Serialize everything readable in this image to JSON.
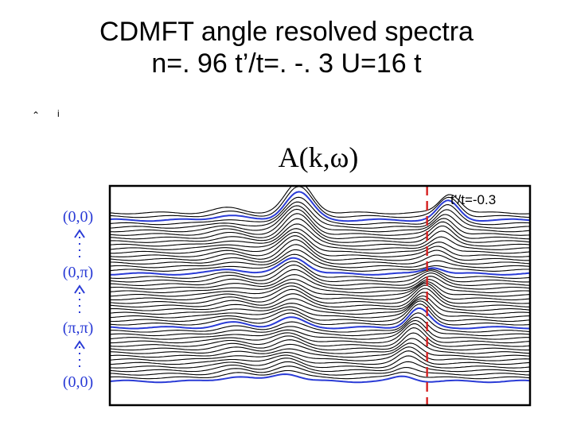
{
  "slide": {
    "title_line1": "CDMFT angle resolved spectra",
    "title_line2": "n=. 96 t’/t=. -. 3 U=16 t"
  },
  "colors": {
    "background": "#ffffff",
    "curve": "#000000",
    "highlight_curve": "#2a3bd6",
    "marker_line": "#d62020"
  },
  "chart_data": {
    "type": "line",
    "title": "A(k,ω)",
    "annotation": "t’/t=-0.3",
    "momentum_labels": [
      "(0,0)",
      "(0,π)",
      "(π,π)",
      "(0,0)"
    ],
    "stacked_curves": 48,
    "highlighted_curve_indices": [
      0,
      15,
      30,
      45
    ],
    "x_range": [
      0,
      1
    ],
    "marker_x": 0.755,
    "features": [
      {
        "name": "lower-band",
        "center_start": 0.42,
        "center_end": 0.45,
        "width": 0.045
      },
      {
        "name": "quasiparticle",
        "center_start": 0.7,
        "center_end": 0.81,
        "width": 0.035
      },
      {
        "name": "upper-side",
        "center_start": 0.3,
        "center_end": 0.28,
        "width": 0.05
      }
    ]
  }
}
